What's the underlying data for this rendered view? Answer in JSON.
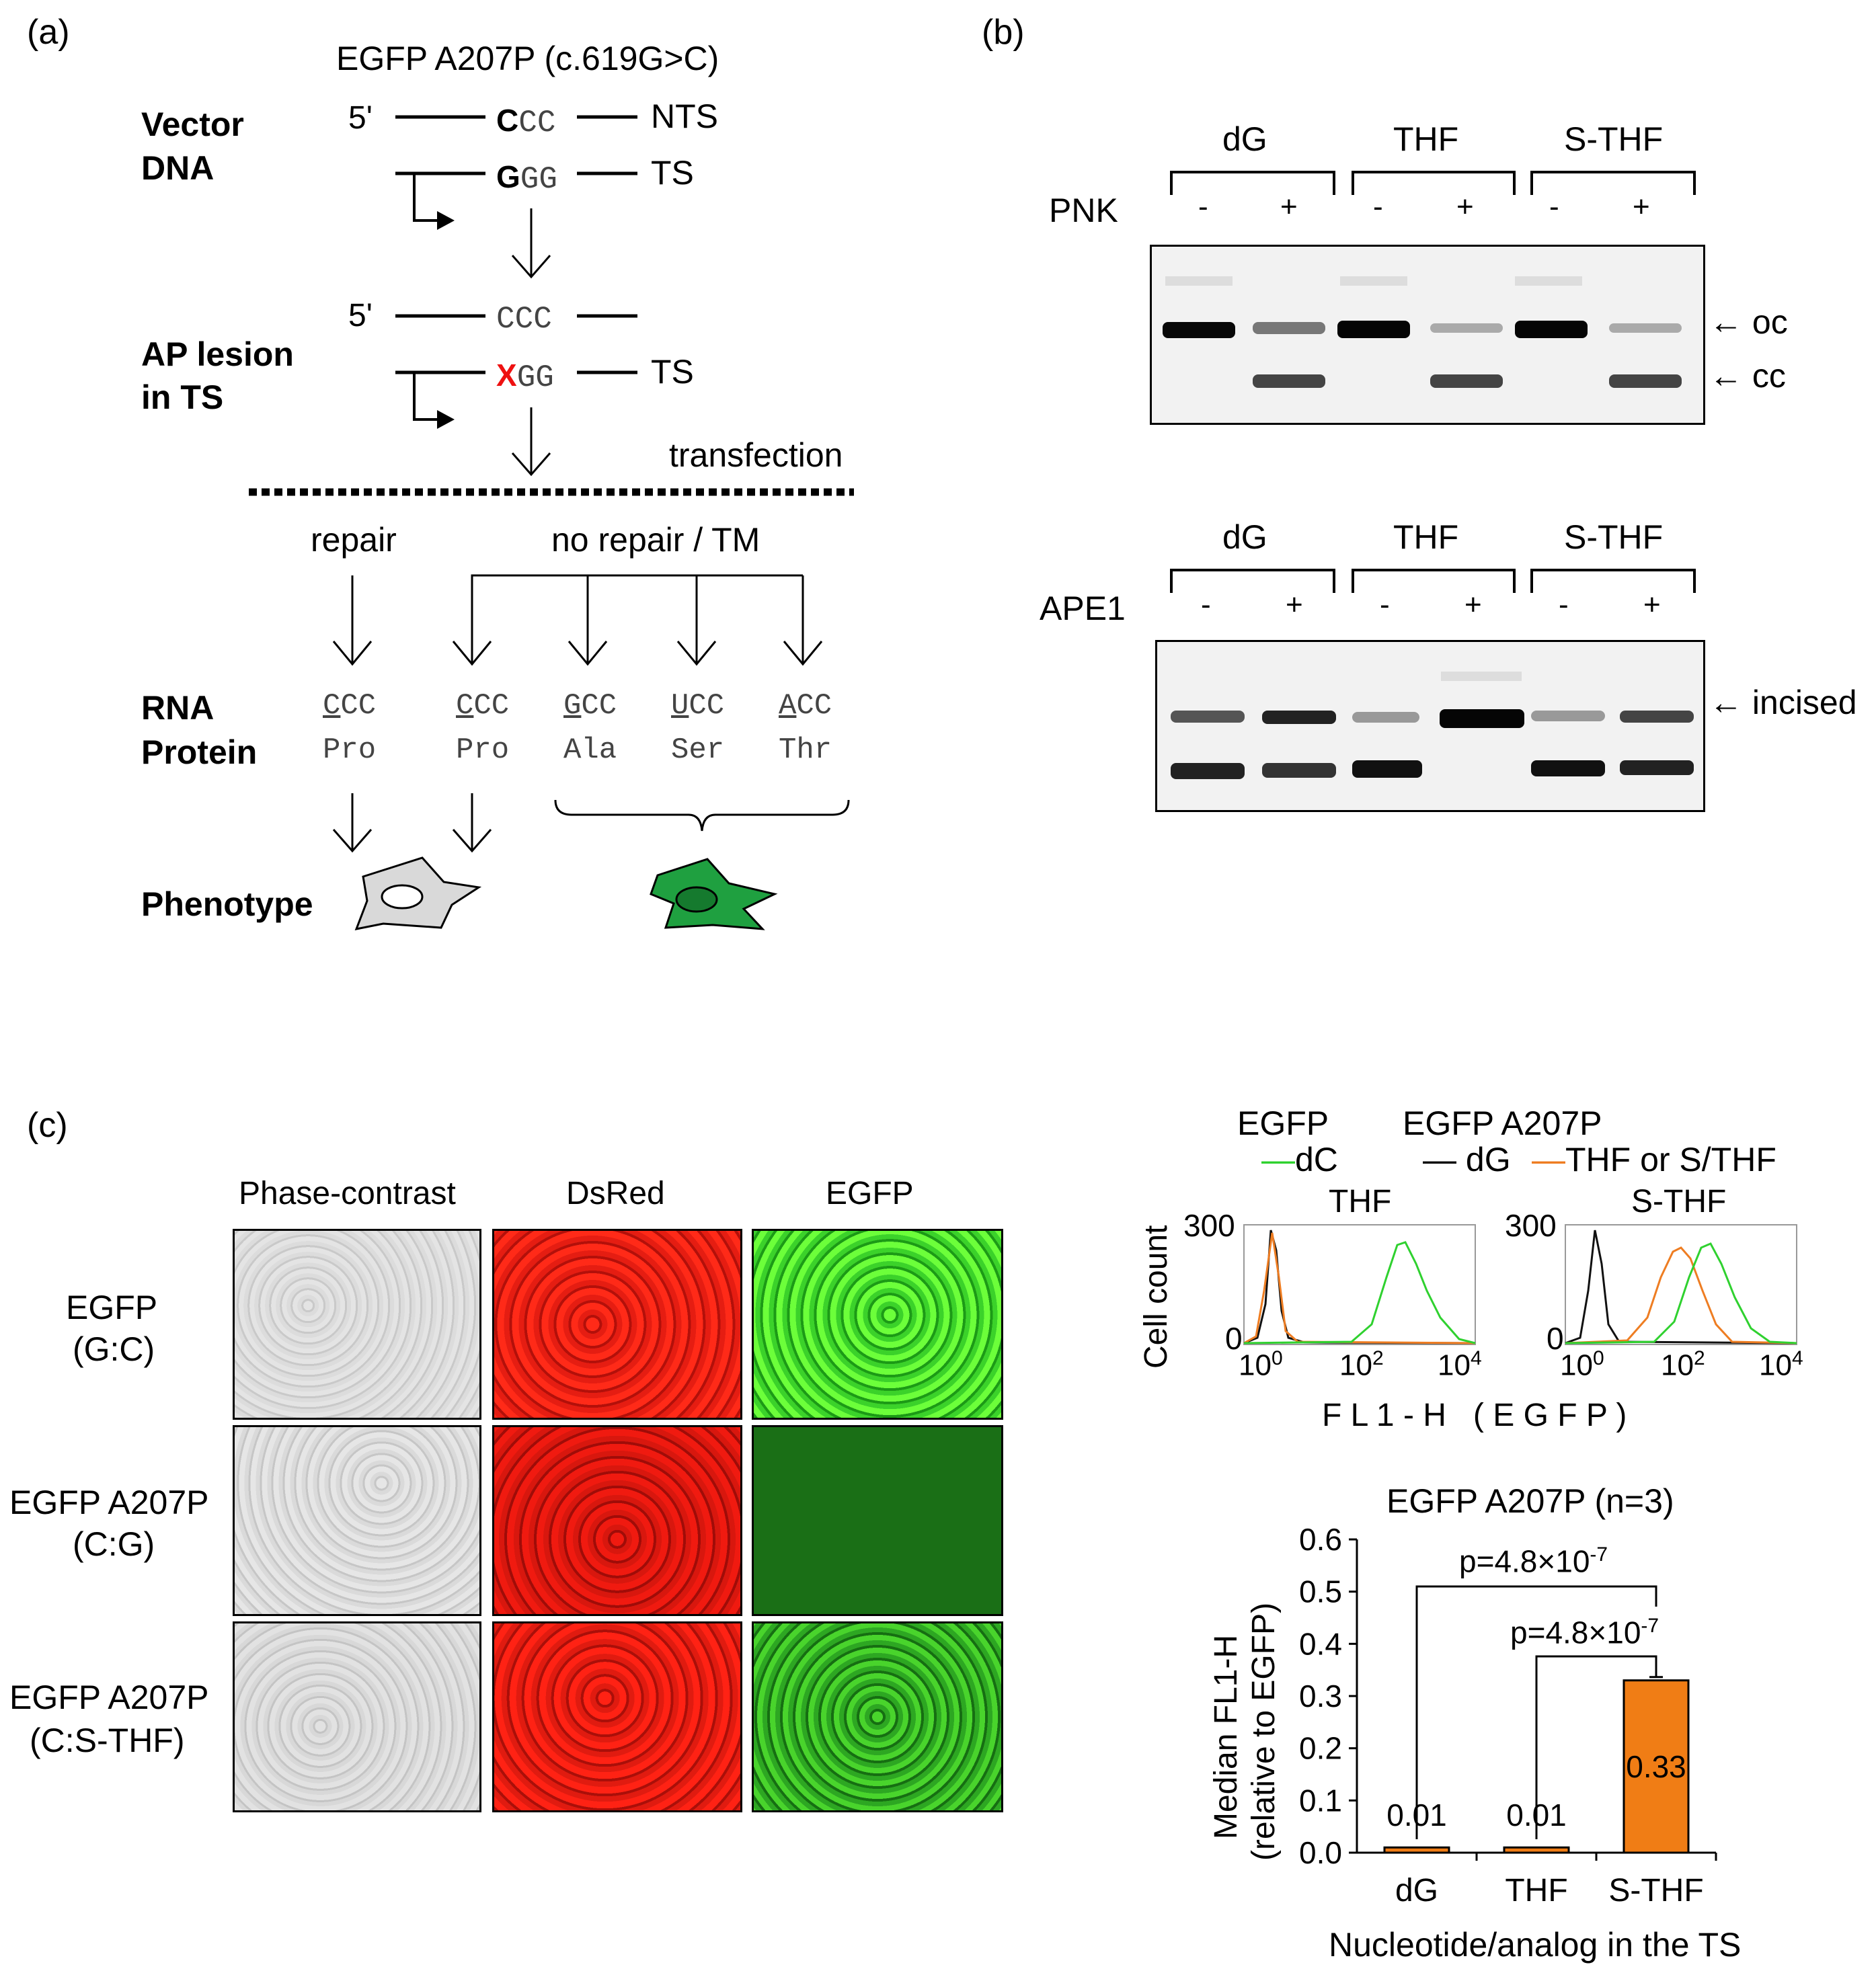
{
  "panel_a": {
    "label": "(a)",
    "title": "EGFP A207P (c.619G>C)",
    "vector_dna": [
      "Vector",
      "DNA"
    ],
    "five_prime_1": "5'",
    "five_prime_2": "5'",
    "top_strand": {
      "first": "C",
      "rest": "CC",
      "label": "NTS"
    },
    "bottom_strand": {
      "first": "G",
      "rest": "GG",
      "label": "TS"
    },
    "ap_lesion": [
      "AP lesion",
      "in TS"
    ],
    "ap_top": "CCC",
    "ap_bottom": {
      "x": "X",
      "rest": "GG",
      "label": "TS"
    },
    "transfection": "transfection",
    "repair": "repair",
    "no_repair": "no repair / TM",
    "rna_protein": [
      "RNA",
      "Protein"
    ],
    "codons": [
      {
        "first": "C",
        "rest": "CC",
        "aa": "Pro"
      },
      {
        "first": "C",
        "rest": "CC",
        "aa": "Pro"
      },
      {
        "first": "G",
        "rest": "CC",
        "aa": "Ala"
      },
      {
        "first": "U",
        "rest": "CC",
        "aa": "Ser"
      },
      {
        "first": "A",
        "rest": "CC",
        "aa": "Thr"
      }
    ],
    "phenotype": "Phenotype",
    "colors": {
      "lesion": "#e11",
      "grey_cell": "#d9d9d9",
      "green_cell": "#1fa040",
      "green_nucleus": "#157a2e"
    }
  },
  "panel_b": {
    "label": "(b)",
    "top_gel": {
      "groups": [
        "dG",
        "THF",
        "S-THF"
      ],
      "row_label": "PNK",
      "signs": [
        "-",
        "+",
        "-",
        "+",
        "-",
        "+"
      ],
      "bands": [
        "oc",
        "cc"
      ]
    },
    "bottom_gel": {
      "groups": [
        "dG",
        "THF",
        "S-THF"
      ],
      "row_label": "APE1",
      "signs": [
        "-",
        "+",
        "-",
        "+",
        "-",
        "+"
      ],
      "bands": [
        "incised"
      ]
    },
    "arrow": "←"
  },
  "panel_c": {
    "label": "(c)",
    "columns": [
      "Phase-contrast",
      "DsRed",
      "EGFP"
    ],
    "rows": [
      {
        "line1": "EGFP",
        "line2": "(G:C)"
      },
      {
        "line1": "EGFP A207P",
        "line2": "(C:G)"
      },
      {
        "line1": "EGFP A207P",
        "line2": "(C:S-THF)"
      }
    ],
    "flow": {
      "legend": {
        "egfp_title": "EGFP",
        "egfp_entry": "dC",
        "a207p_title": "EGFP A207P",
        "dg_entry": "dG",
        "thf_entry": "THF or S/THF"
      },
      "ylabel": "Cell count",
      "xlabel": "F L 1 - H   ( E G F P )",
      "panels": [
        {
          "title": "THF",
          "ymax": "300",
          "ymin": "0",
          "ticks": [
            "10",
            "10",
            "10"
          ],
          "exps": [
            "0",
            "2",
            "4"
          ]
        },
        {
          "title": "S-THF",
          "ymax": "300",
          "ymin": "0",
          "ticks": [
            "10",
            "10",
            "10"
          ],
          "exps": [
            "0",
            "2",
            "4"
          ]
        }
      ],
      "colors": {
        "dC": "#2fd12f",
        "dG": "#111111",
        "THF": "#ee7d22"
      }
    },
    "bar_chart_text": {
      "title": "EGFP A207P (n=3)",
      "ylabel1": "Median  FL1-H",
      "ylabel2": "(relative to EGFP)",
      "xlabel": "Nucleotide/analog in the TS",
      "p1": {
        "base": "p=4.8×10",
        "exp": "-7"
      },
      "p2": {
        "base": "p=4.8×10",
        "exp": "-7"
      }
    }
  },
  "chart_data": {
    "type": "bar",
    "title": "EGFP A207P (n=3)",
    "categories": [
      "dG",
      "THF",
      "S-THF"
    ],
    "values": [
      0.01,
      0.01,
      0.33
    ],
    "value_labels": [
      "0.01",
      "0.01",
      "0.33"
    ],
    "xlabel": "Nucleotide/analog in the TS",
    "ylabel": "Median  FL1-H (relative to EGFP)",
    "ylim": [
      0,
      0.6
    ],
    "yticks": [
      "0.0",
      "0.1",
      "0.2",
      "0.3",
      "0.4",
      "0.5",
      "0.6"
    ],
    "bar_color": "#f07d15",
    "grid": false
  }
}
